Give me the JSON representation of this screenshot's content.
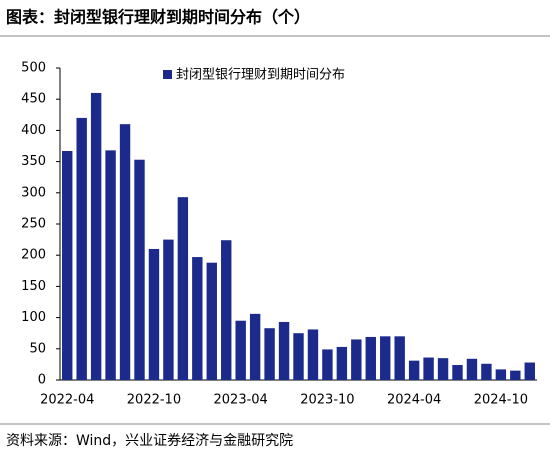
{
  "chart_data": {
    "type": "bar",
    "title": "图表：封闭型银行理财到期时间分布（个）",
    "source": "资料来源：Wind，兴业证券经济与金融研究院",
    "categories": [
      "2022-04",
      null,
      null,
      null,
      null,
      null,
      "2022-10",
      null,
      null,
      null,
      null,
      null,
      "2023-04",
      null,
      null,
      null,
      null,
      null,
      "2023-10",
      null,
      null,
      null,
      null,
      null,
      "2024-04",
      null,
      null,
      null,
      null,
      null,
      "2024-10",
      null,
      null
    ],
    "series": [
      {
        "name": "封闭型银行理财到期时间分布",
        "color": "#1c2a8c",
        "values": [
          367,
          420,
          460,
          368,
          410,
          353,
          210,
          225,
          293,
          197,
          188,
          224,
          95,
          106,
          83,
          93,
          75,
          81,
          49,
          53,
          65,
          69,
          70,
          70,
          31,
          36,
          35,
          24,
          34,
          26,
          17,
          15,
          28
        ]
      }
    ],
    "ylim": [
      0,
      500
    ],
    "yticks": [
      0,
      50,
      100,
      150,
      200,
      250,
      300,
      350,
      400,
      450,
      500
    ],
    "legend": "top"
  }
}
